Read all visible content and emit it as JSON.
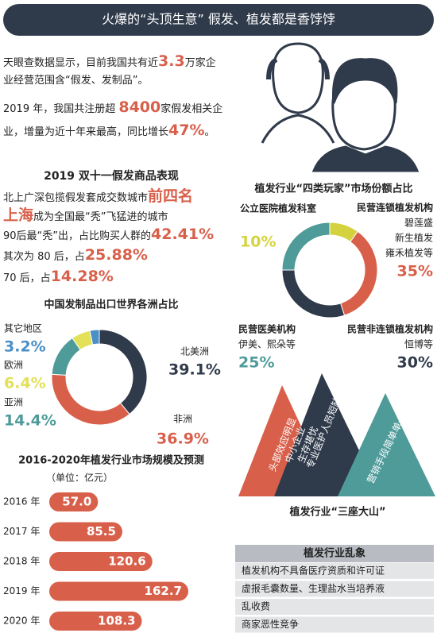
{
  "header": {
    "title": "火爆的“头顶生意” 假发、植发都是香饽饽"
  },
  "intro": [
    [
      "天眼查数据显示，目前我国共有近",
      {
        "t": "3.3"
      },
      "万家企业经营范围含“假发、发制品”。"
    ],
    [
      "2019 年，我国共注册超 ",
      {
        "t": "8400"
      },
      "家假发相关企业，增量为近十年来最高，同比增长",
      {
        "t": "47%"
      },
      "。"
    ]
  ],
  "double11": {
    "title": "2019 双十一假发商品表现",
    "lines": [
      [
        "北上广深包揽假发套成交数城市",
        {
          "t": "前四名"
        }
      ],
      [
        {
          "t": "上海"
        },
        "成为全国最“秃”飞猛进的城市"
      ],
      [
        "90后最“秃”出，占比购买人群的",
        {
          "t": "42.41%"
        }
      ],
      [
        "其次为 80 后，占",
        {
          "t": "25.88%"
        }
      ],
      [
        "70 后，占",
        {
          "t": "14.28%"
        }
      ]
    ]
  },
  "chart_data": [
    {
      "type": "donut",
      "title": "中国发制品出口世界各洲占比",
      "categories": [
        "北美洲",
        "非洲",
        "亚洲",
        "欧洲",
        "其它地区"
      ],
      "values": [
        39.1,
        36.9,
        14.4,
        6.4,
        3.2
      ],
      "value_labels": [
        "39.1%",
        "36.9%",
        "14.4%",
        "6.4%",
        "3.2%"
      ],
      "colors": [
        "#2f3a4b",
        "#d8604b",
        "#4e9b9a",
        "#e2e157",
        "#4b8fc6"
      ]
    },
    {
      "type": "donut",
      "title": "植发行业“四类玩家”市场份额占比",
      "categories": [
        "公立医院植发科室",
        "民营连锁植发机构",
        "民营非连锁植发机构",
        "民营医美机构"
      ],
      "notes": [
        [],
        [
          "碧莲盛",
          "新生植发",
          "雍禾植发等"
        ],
        [
          "恒博等"
        ],
        [
          "伊美、熙朵等"
        ]
      ],
      "values": [
        10,
        35,
        30,
        25
      ],
      "value_labels": [
        "10%",
        "35%",
        "30%",
        "25%"
      ],
      "colors": [
        "#d4d33f",
        "#d8604b",
        "#2f3a4b",
        "#4e9b9a"
      ]
    },
    {
      "type": "bar",
      "title": "2016-2020年植发行业市场规模及预测",
      "subtitle": "（单位：亿元）",
      "categories": [
        "2016 年",
        "2017 年",
        "2018 年",
        "2019 年",
        "2020 年"
      ],
      "values": [
        57.0,
        85.5,
        120.6,
        162.7,
        108.3
      ],
      "value_labels": [
        "57.0",
        "85.5",
        "120.6",
        "162.7",
        "108.3"
      ],
      "color": "#d8604b"
    }
  ],
  "mountains": {
    "title": "植发行业“三座大山”",
    "peaks": [
      [
        "头部效应明显",
        "中小企业",
        "生存堪忧"
      ],
      [
        "专业医护人员短缺"
      ],
      [
        "营销手段简单单一"
      ]
    ]
  },
  "chaos": {
    "title": "植发行业乱象",
    "items": [
      "植发机构不具备医疗资质和许可证",
      "虚报毛囊数量、生理盐水当培养液",
      "乱收费",
      "商家恶性竞争"
    ]
  }
}
